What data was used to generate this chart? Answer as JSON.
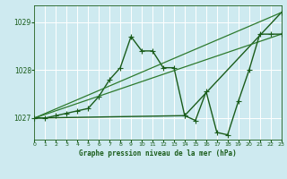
{
  "title": "Graphe pression niveau de la mer (hPa)",
  "bg_color": "#ceeaf0",
  "grid_color": "#ffffff",
  "line_color_dark": "#1a5c1a",
  "xlim": [
    0,
    23
  ],
  "ylim": [
    1026.55,
    1029.35
  ],
  "yticks": [
    1027,
    1028,
    1029
  ],
  "xticks": [
    0,
    1,
    2,
    3,
    4,
    5,
    6,
    7,
    8,
    9,
    10,
    11,
    12,
    13,
    14,
    15,
    16,
    17,
    18,
    19,
    20,
    21,
    22,
    23
  ],
  "series": [
    {
      "x": [
        0,
        1,
        2,
        3,
        4,
        5,
        6,
        7,
        8,
        9,
        10,
        11,
        12,
        13,
        14,
        23
      ],
      "y": [
        1027.0,
        1027.0,
        1027.05,
        1027.1,
        1027.15,
        1027.2,
        1027.45,
        1027.8,
        1028.05,
        1028.7,
        1028.4,
        1028.4,
        1028.05,
        1028.05,
        1027.05,
        1029.2
      ],
      "color": "#1a5c1a",
      "lw": 1.0,
      "marker": "+",
      "ms": 4,
      "ls": "-"
    },
    {
      "x": [
        0,
        23
      ],
      "y": [
        1027.0,
        1029.2
      ],
      "color": "#2d7a2d",
      "lw": 0.9,
      "marker": null,
      "ms": 0,
      "ls": "-"
    },
    {
      "x": [
        0,
        23
      ],
      "y": [
        1027.0,
        1028.75
      ],
      "color": "#2d7a2d",
      "lw": 0.9,
      "marker": null,
      "ms": 0,
      "ls": "-"
    },
    {
      "x": [
        0,
        14,
        15,
        16,
        17,
        18,
        19,
        20,
        21,
        22,
        23
      ],
      "y": [
        1027.0,
        1027.05,
        1026.95,
        1027.55,
        1026.7,
        1026.65,
        1027.35,
        1028.0,
        1028.75,
        1028.75,
        1028.75
      ],
      "color": "#1a5c1a",
      "lw": 1.0,
      "marker": "+",
      "ms": 4,
      "ls": "-"
    }
  ]
}
